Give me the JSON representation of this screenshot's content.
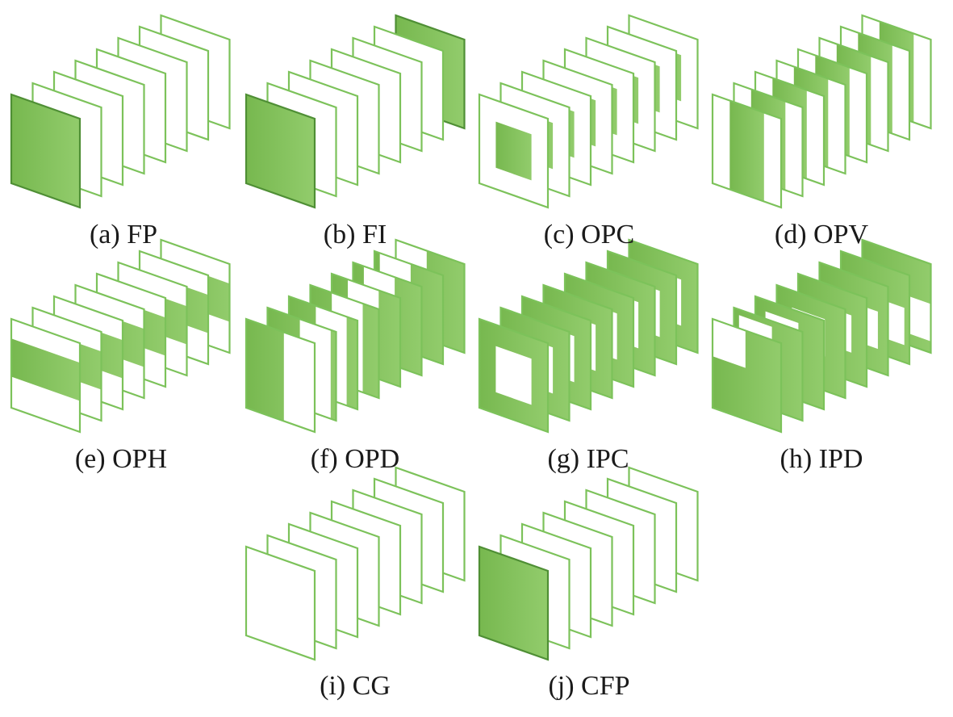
{
  "colors": {
    "stroke": "#7cc25a",
    "stroke_dark": "#4f8f35",
    "fill": "#77b84f",
    "fill_light": "#92cc6c",
    "background": "#ffffff"
  },
  "frames_per_panel": 8,
  "panels": [
    {
      "id": "a",
      "caption": "(a) FP",
      "pattern": "first-frame-filled"
    },
    {
      "id": "b",
      "caption": "(b) FI",
      "pattern": "first-and-last-frame-filled"
    },
    {
      "id": "c",
      "caption": "(c) OPC",
      "pattern": "outpainting-center"
    },
    {
      "id": "d",
      "caption": "(d) OPV",
      "pattern": "outpainting-vertical"
    },
    {
      "id": "e",
      "caption": "(e) OPH",
      "pattern": "outpainting-horizontal"
    },
    {
      "id": "f",
      "caption": "(f) OPD",
      "pattern": "outpainting-dynamic"
    },
    {
      "id": "g",
      "caption": "(g) IPC",
      "pattern": "inpainting-center"
    },
    {
      "id": "h",
      "caption": "(h) IPD",
      "pattern": "inpainting-dynamic"
    },
    {
      "id": "i",
      "caption": "(i) CG",
      "pattern": "all-frames-empty"
    },
    {
      "id": "j",
      "caption": "(j) CFP",
      "pattern": "first-frame-filled"
    }
  ]
}
